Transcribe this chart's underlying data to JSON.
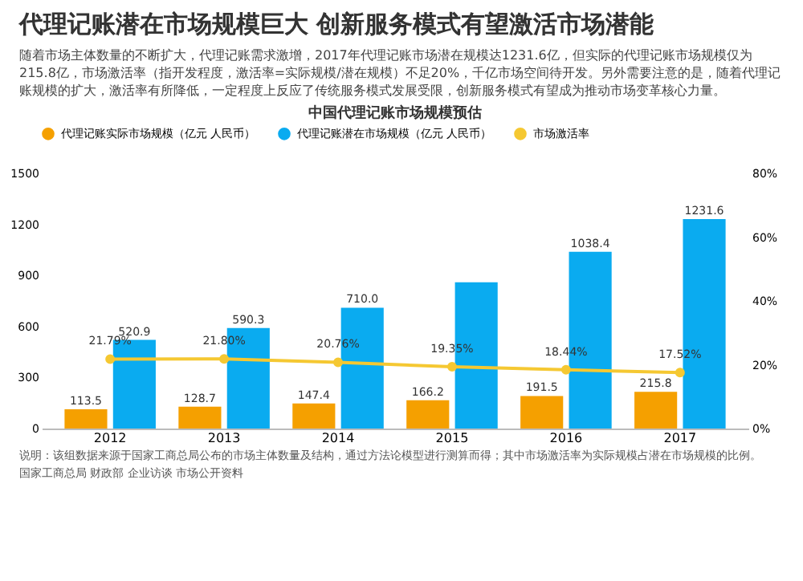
{
  "chart_data": {
    "type": "bar",
    "title": "中国代理记账市场规模预估",
    "annotations": [
      "代理记账潜在市场规模巨大 创新服务模式有望激活市场潜能",
      "随着市场主体数量的不断扩大，代理记账需求激增，2017年代理记账市场潜在规模达1231.6亿，但实际的代理记账市场规模仅为215.8亿，市场激活率（指开发程度，激活率=实际规模/潜在规模）不足20%，千亿市场空间待开发。另外需要注意的是，随着代理记账规模的扩大，激活率有所降低，一定程度上反应了传统服务模式发展受限，创新服务模式有望成为推动市场变革核心力量。",
      "说明：该组数据来源于国家工商总局公布的市场主体数量及结构，通过方法论模型进行测算而得；其中市场激活率为实际规模占潜在市场规模的比例。",
      "国家工商总局 财政部 企业访谈 市场公开资料"
    ],
    "categories": [
      "2012",
      "2013",
      "2014",
      "2015",
      "2016",
      "2017"
    ],
    "series": [
      {
        "name": "代理记账实际市场规模（亿元 人民币）",
        "color": "#f5a000",
        "values": [
          113.5,
          128.7,
          147.4,
          166.2,
          191.5,
          215.8
        ],
        "value_labels": [
          "113.5",
          "128.7",
          "147.4",
          "166.2",
          "191.5",
          "215.8"
        ]
      },
      {
        "name": "代理记账潜在市场规模（亿元 人民币）",
        "color": "#0aabf0",
        "values": [
          520.9,
          590.3,
          710.0,
          860,
          1038.4,
          1231.6
        ],
        "value_labels": [
          "520.9",
          "590.3",
          "710.0",
          null,
          "1038.4",
          "1231.6"
        ]
      },
      {
        "name": "市场激活率",
        "type": "line",
        "axis": "y2",
        "color": "#f5c832",
        "marker": "circle",
        "values": [
          21.79,
          21.8,
          20.76,
          19.35,
          18.44,
          17.52
        ],
        "value_labels": [
          "21.79%",
          "21.80%",
          "20.76%",
          "19.35%",
          "18.44%",
          "17.52%"
        ]
      }
    ],
    "ylim": [
      0,
      1500
    ],
    "yticks": [
      0,
      300,
      600,
      900,
      1200,
      1500
    ],
    "y2lim": [
      0,
      80
    ],
    "y2ticks": [
      {
        "value": 0,
        "label": "0%"
      },
      {
        "value": 20,
        "label": "20%"
      },
      {
        "value": 40,
        "label": "40%"
      },
      {
        "value": 60,
        "label": "60%"
      },
      {
        "value": 80,
        "label": "80%"
      }
    ],
    "legend": "top",
    "grid": false
  }
}
